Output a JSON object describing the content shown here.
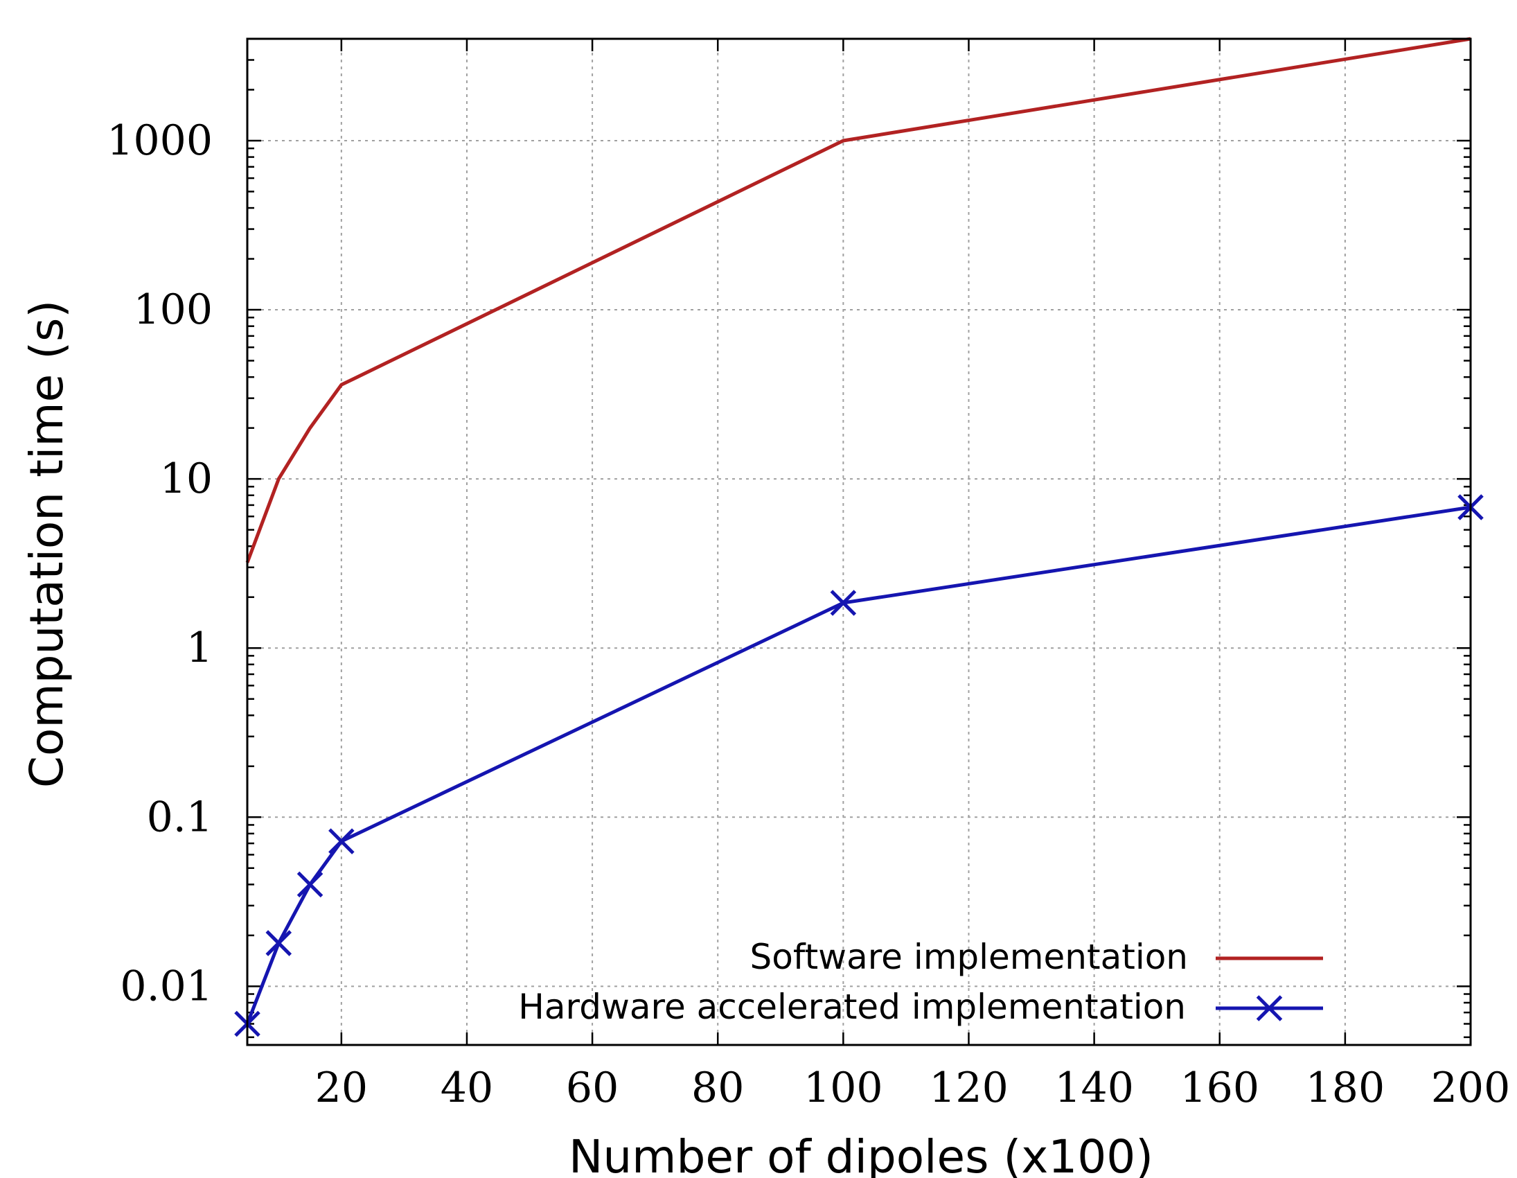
{
  "chart_data": {
    "type": "line",
    "xlabel": "Number of dipoles (x100)",
    "ylabel": "Computation time (s)",
    "xlim": [
      5,
      200
    ],
    "ylim": [
      0.0045,
      4000
    ],
    "yscale": "log",
    "x_ticks": [
      20,
      40,
      60,
      80,
      100,
      120,
      140,
      160,
      180,
      200
    ],
    "y_ticks": [
      0.01,
      0.1,
      1,
      10,
      100,
      1000
    ],
    "y_tick_labels": [
      "0.01",
      "0.1",
      "1",
      "10",
      "100",
      "1000"
    ],
    "grid": true,
    "legend_position": "bottom-right",
    "series": [
      {
        "name": "Software implementation",
        "color": "#b22222",
        "marker": "none",
        "x": [
          5,
          10,
          15,
          20,
          100,
          200
        ],
        "y": [
          3.2,
          10,
          20,
          36,
          1000,
          4000
        ]
      },
      {
        "name": "Hardware accelerated implementation",
        "color": "#1515b0",
        "marker": "x",
        "x": [
          5,
          10,
          15,
          20,
          100,
          200
        ],
        "y": [
          0.006,
          0.018,
          0.04,
          0.072,
          1.85,
          6.8
        ]
      }
    ]
  }
}
